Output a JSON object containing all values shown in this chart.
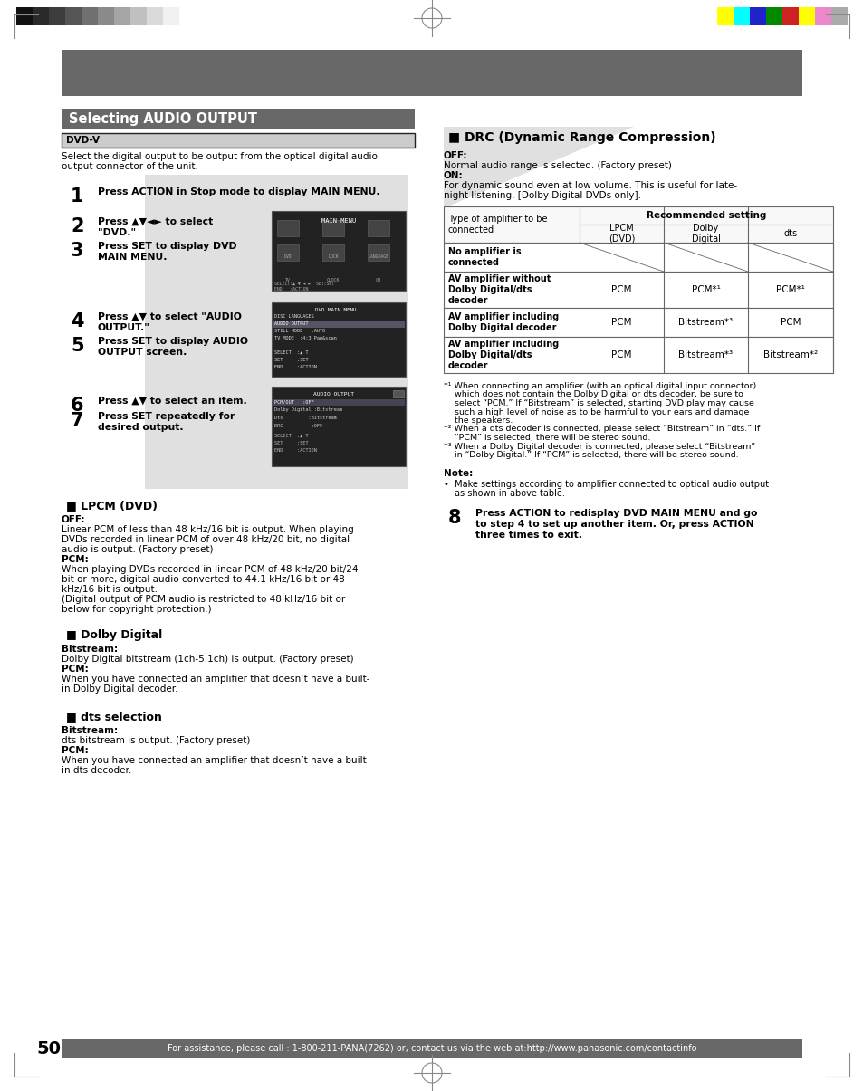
{
  "page_bg": "#ffffff",
  "header_bar_color": "#686868",
  "title_bar_color": "#686868",
  "title_text": "Selecting AUDIO OUTPUT",
  "title_text_color": "#ffffff",
  "footer_bar_color": "#686868",
  "footer_text": "For assistance, please call : 1-800-211-PANA(7262) or, contact us via the web at:http://www.panasonic.com/contactinfo",
  "footer_text_color": "#ffffff",
  "page_number": "50",
  "color_bar_left_colors": [
    "#111111",
    "#2a2a2a",
    "#3d3d3d",
    "#555555",
    "#707070",
    "#8a8a8a",
    "#a5a5a5",
    "#c0c0c0",
    "#dadada",
    "#f0f0f0"
  ],
  "color_bar_right_colors": [
    "#ffff00",
    "#00ffff",
    "#2222cc",
    "#008800",
    "#cc2222",
    "#ffff00",
    "#ee88cc",
    "#aaaaaa"
  ],
  "gray_bg_color": "#e0e0e0",
  "table_border_color": "#666666",
  "crosshair_color": "#888888",
  "corner_mark_color": "#888888"
}
